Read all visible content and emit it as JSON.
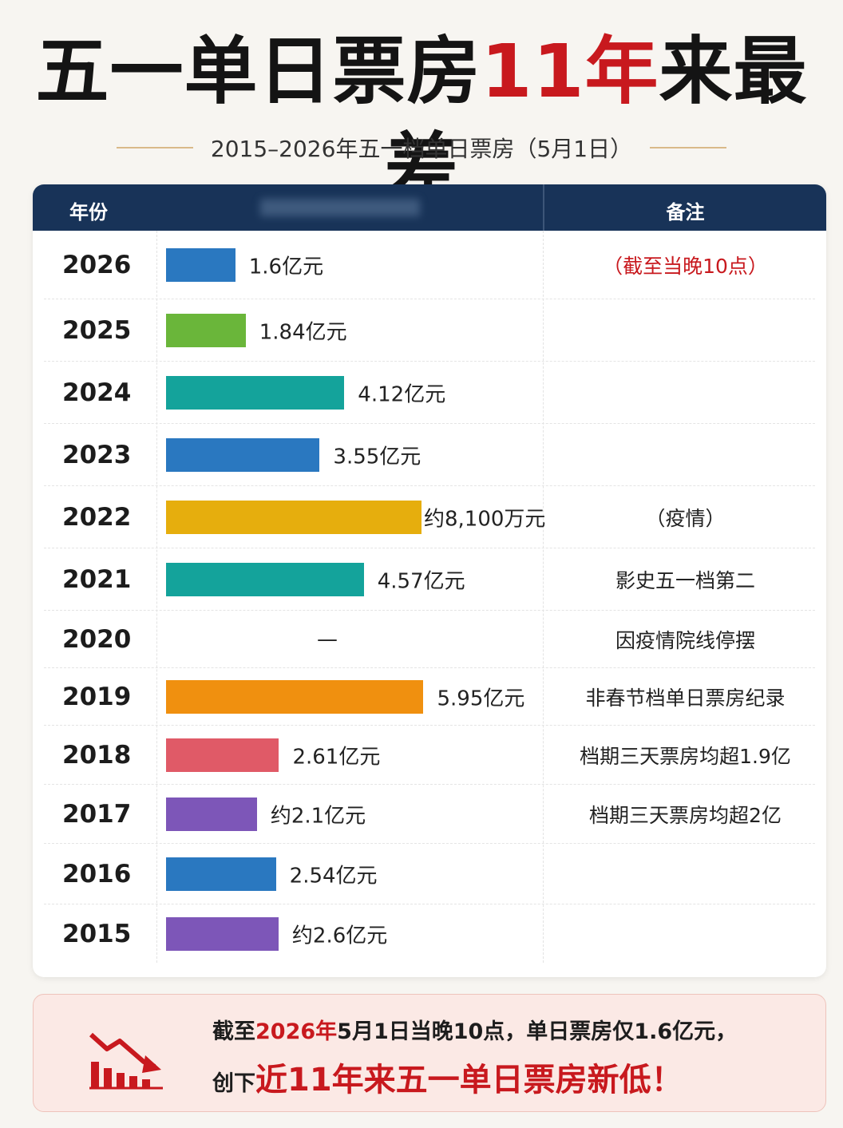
{
  "header": {
    "title_part1": "五一单日票房",
    "title_highlight": "11年",
    "title_part2": "来最差",
    "subtitle": "2015–2026年五一档单日票房（5月1日）"
  },
  "table": {
    "col_year": "年份",
    "col_note": "备注"
  },
  "chart_data": {
    "type": "bar",
    "orientation": "horizontal",
    "unit": "亿元",
    "categories": [
      "2026",
      "2025",
      "2024",
      "2023",
      "2022",
      "2021",
      "2020",
      "2019",
      "2018",
      "2017",
      "2016",
      "2015"
    ],
    "values": [
      1.6,
      1.84,
      4.12,
      3.55,
      0.81,
      4.57,
      null,
      5.95,
      2.61,
      2.1,
      2.54,
      2.6
    ],
    "value_labels": [
      "1.6亿元",
      "1.84亿元",
      "4.12亿元",
      "3.55亿元",
      "约8,100万元",
      "4.57亿元",
      "—",
      "5.95亿元",
      "2.61亿元",
      "约2.1亿元",
      "2.54亿元",
      "约2.6亿元"
    ],
    "colors": [
      "#2a78c0",
      "#6ab63a",
      "#14a39b",
      "#2a78c0",
      "#e6ae0d",
      "#14a39b",
      null,
      "#f0900f",
      "#e05a67",
      "#7d56b8",
      "#2a78c0",
      "#7d56b8"
    ],
    "notes": [
      "（截至当晚10点）",
      "",
      "",
      "",
      "（疫情）",
      "影史五一档第二",
      "因疫情院线停摆",
      "非春节档单日票房纪录",
      "档期三天票房均超1.9亿",
      "档期三天票房均超2亿",
      "",
      ""
    ],
    "note_colors": [
      "#c8191e",
      "",
      "",
      "",
      "",
      "",
      "",
      "",
      "",
      "",
      "",
      ""
    ]
  },
  "footer": {
    "line1_a": "截至",
    "line1_b": "2026年",
    "line1_c": "5月1日当晚10点，单日票房仅1.6亿元，",
    "line2_a": "创下",
    "line2_b": "近11年来五一单日票房新低！",
    "icon": "chart-decline-icon"
  }
}
